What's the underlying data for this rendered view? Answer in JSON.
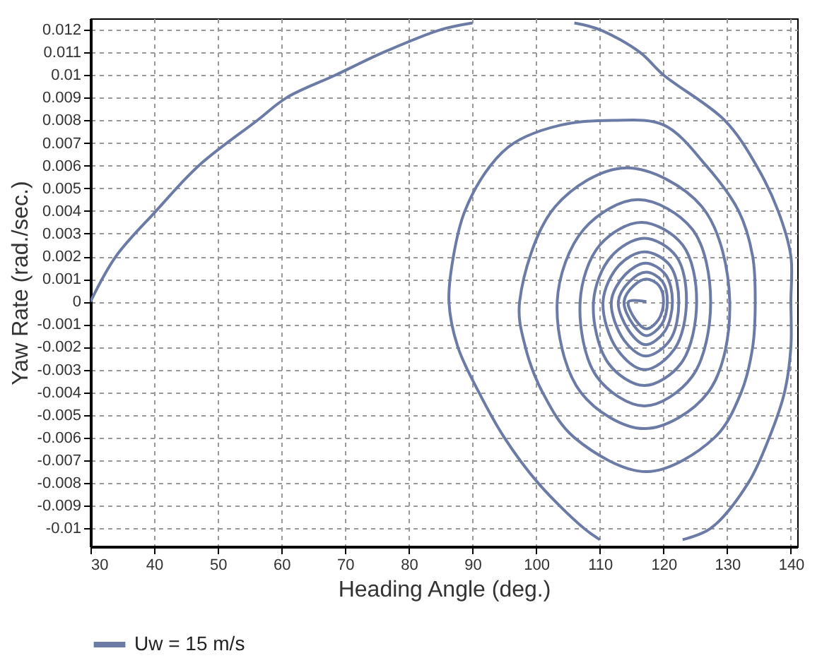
{
  "chart_data": {
    "type": "line",
    "xlabel": "Heading Angle (deg.)",
    "ylabel": "Yaw Rate (rad./sec.)",
    "xlim": [
      30,
      141
    ],
    "ylim": [
      -0.0108,
      0.0125
    ],
    "xticks": [
      30,
      40,
      50,
      60,
      70,
      80,
      90,
      100,
      110,
      120,
      130,
      140
    ],
    "yticks": [
      -0.01,
      -0.009,
      -0.008,
      -0.007,
      -0.006,
      -0.005,
      -0.004,
      -0.003,
      -0.002,
      -0.001,
      0,
      0.001,
      0.002,
      0.003,
      0.004,
      0.005,
      0.006,
      0.007,
      0.008,
      0.009,
      0.01,
      0.011,
      0.012
    ],
    "grid": true,
    "legend": "bottom",
    "marker": "none",
    "line_style": "solid",
    "series": [
      {
        "name": "Uw = 15 m/s",
        "color": "#6b7ba6",
        "x": [
          30,
          34,
          40.3,
          47,
          56.2,
          60.8,
          68.5,
          76,
          85,
          90,
          95,
          100,
          104,
          106,
          110,
          116.3,
          120,
          129.6,
          134.6,
          138,
          140,
          140,
          140,
          139,
          136.6,
          133.3,
          127.4,
          123,
          120,
          113,
          110,
          107.5,
          100.3,
          95,
          91,
          87.7,
          86.3,
          87,
          88.8,
          92.8,
          96.5,
          104,
          112,
          120,
          126.7,
          131.8,
          134,
          134.4,
          134,
          132.2,
          128,
          117.4,
          106,
          101,
          98.3,
          97.4,
          103,
          114,
          126,
          130.4,
          127,
          117,
          107,
          103.3,
          107.5,
          116,
          124.5,
          127.4,
          124.5,
          117,
          109.5,
          106.9,
          110,
          116.5,
          123,
          125.2,
          122.8,
          117,
          111.3,
          109,
          111.8,
          117,
          122,
          123.6,
          121.7,
          117,
          112.7,
          110.5,
          113,
          117,
          121,
          122.4,
          121,
          117.2,
          113.8,
          111.8,
          114,
          117.2,
          120.3,
          121.4,
          120.2,
          117.2,
          114.6,
          112.9,
          114.7,
          117.3,
          119.8,
          120.6,
          119.7,
          117.3,
          115.2,
          113.8,
          115.3,
          117.3,
          119.3,
          120,
          119.2,
          117.3,
          115.6,
          114.5,
          117.3
        ],
        "values": [
          0,
          0.002,
          0.004,
          0.006,
          0.008,
          0.009,
          0.01,
          0.011,
          0.012,
          0.0123,
          null,
          null,
          null,
          0.0123,
          0.012,
          0.011,
          0.01,
          0.008,
          0.006,
          0.004,
          0.002,
          0,
          -0.002,
          -0.004,
          -0.006,
          -0.008,
          -0.01,
          -0.0105,
          null,
          null,
          -0.0105,
          -0.01,
          -0.008,
          -0.006,
          -0.004,
          -0.002,
          0,
          0.002,
          0.004,
          0.006,
          0.007,
          0.0078,
          0.008,
          0.0078,
          0.006,
          0.004,
          0.002,
          0,
          -0.002,
          -0.004,
          -0.006,
          -0.0075,
          -0.006,
          -0.004,
          -0.002,
          0,
          0.0042,
          0.0059,
          0.0042,
          0,
          -0.004,
          -0.0056,
          -0.004,
          0,
          0.0032,
          0.0045,
          0.0032,
          0,
          -0.0033,
          -0.0046,
          -0.0033,
          0,
          0.0025,
          0.0035,
          0.0025,
          0,
          -0.0027,
          -0.0037,
          -0.0027,
          0,
          0.002,
          0.0028,
          0.002,
          0,
          -0.0021,
          -0.003,
          -0.0021,
          0,
          0.0016,
          0.0022,
          0.0016,
          0,
          -0.0017,
          -0.0024,
          -0.0017,
          0,
          0.0012,
          0.0017,
          0.0012,
          0,
          -0.0013,
          -0.0019,
          -0.0013,
          0,
          0.0009,
          0.0013,
          0.0009,
          0,
          -0.001,
          -0.0015,
          -0.001,
          0,
          0.0007,
          0.001,
          0.0007,
          0,
          -0.0008,
          -0.0012,
          -0.0008,
          0,
          0
        ]
      }
    ]
  }
}
